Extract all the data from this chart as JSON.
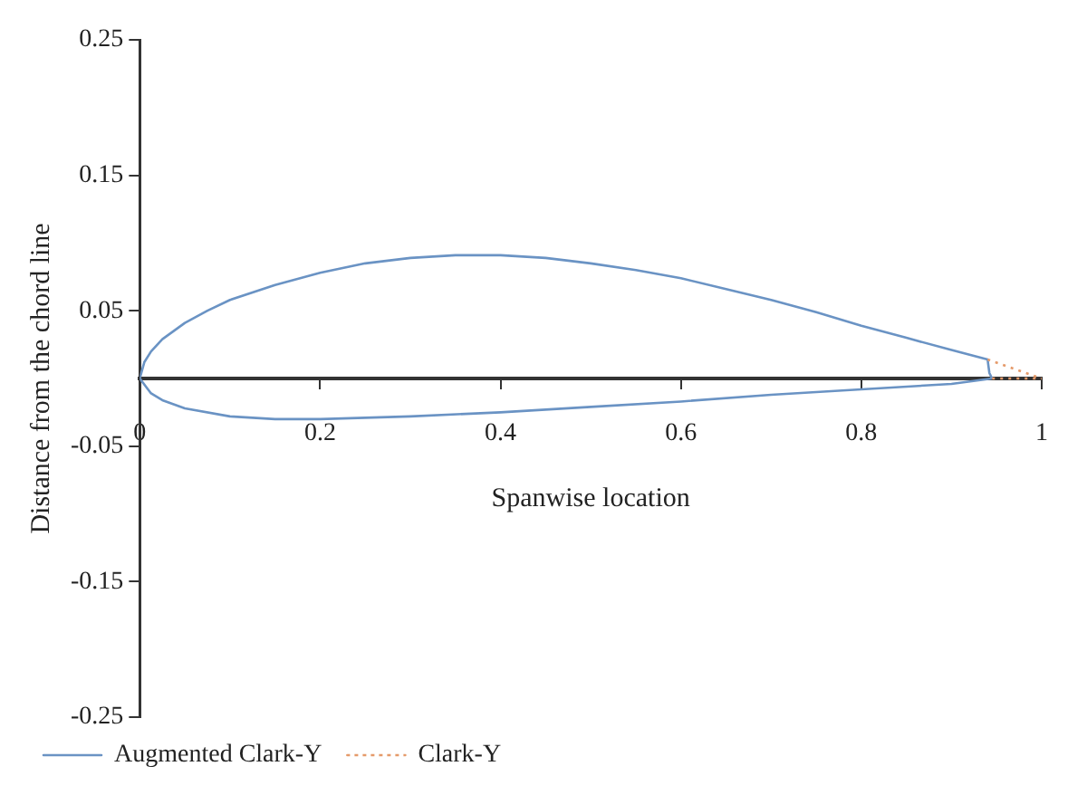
{
  "chart_data": {
    "type": "line",
    "xlabel": "Spanwise location",
    "ylabel": "Distance from the chord line",
    "xlim": [
      0,
      1
    ],
    "xticks": [
      0,
      0.2,
      0.4,
      0.6,
      0.8,
      1
    ],
    "ylim": [
      -0.25,
      0.25
    ],
    "yticks": [
      -0.25,
      -0.15,
      -0.05,
      0.05,
      0.15,
      0.25
    ],
    "grid": false,
    "legend": "bottom left",
    "marker": "none",
    "series": [
      {
        "name": "Augmented Clark-Y",
        "color": "#6a93c4",
        "line_style": "solid",
        "x": [
          0,
          0.005,
          0.0125,
          0.025,
          0.05,
          0.075,
          0.1,
          0.15,
          0.2,
          0.25,
          0.3,
          0.35,
          0.4,
          0.45,
          0.5,
          0.55,
          0.6,
          0.65,
          0.7,
          0.75,
          0.8,
          0.85,
          0.9,
          0.94,
          0.942,
          0.945
        ],
        "values": [
          0,
          0.012,
          0.02,
          0.029,
          0.041,
          0.05,
          0.058,
          0.069,
          0.078,
          0.085,
          0.089,
          0.091,
          0.091,
          0.089,
          0.085,
          0.08,
          0.074,
          0.066,
          0.058,
          0.049,
          0.039,
          0.03,
          0.021,
          0.014,
          0.004,
          0
        ]
      },
      {
        "color": "#6a93c4",
        "line_style": "solid",
        "x": [
          0,
          0.0125,
          0.025,
          0.05,
          0.1,
          0.15,
          0.2,
          0.3,
          0.4,
          0.5,
          0.6,
          0.7,
          0.8,
          0.9,
          0.945
        ],
        "values": [
          0,
          -0.011,
          -0.016,
          -0.022,
          -0.028,
          -0.03,
          -0.03,
          -0.028,
          -0.025,
          -0.021,
          -0.017,
          -0.012,
          -0.008,
          -0.004,
          0
        ]
      },
      {
        "name": "Clark-Y",
        "color": "#e59a6a",
        "line_style": "dotted",
        "x": [
          0.94,
          0.97,
          1
        ],
        "values": [
          0.014,
          0.007,
          0
        ]
      },
      {
        "color": "#e59a6a",
        "line_style": "dotted",
        "x": [
          0.945,
          1
        ],
        "values": [
          0,
          0
        ]
      }
    ]
  }
}
